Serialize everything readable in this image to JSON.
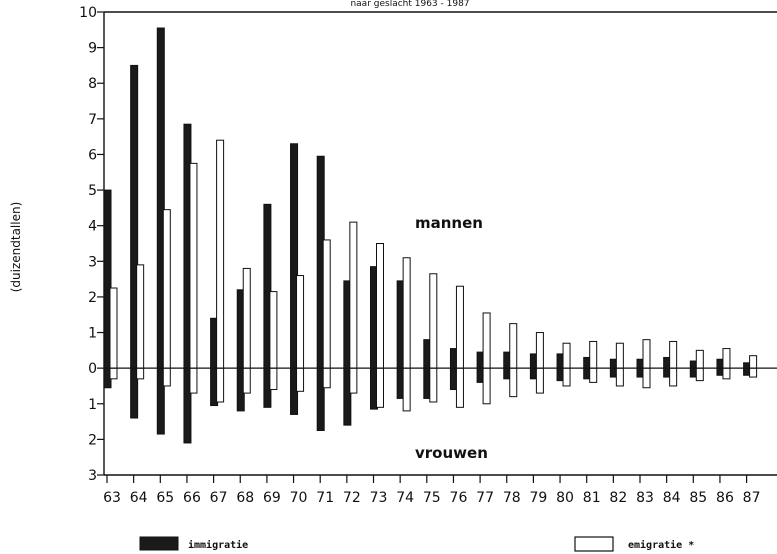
{
  "chart_data": {
    "type": "bar",
    "title": "naar geslacht 1963 - 1987",
    "ylabel": "(duizendtallen)",
    "categories": [
      "63",
      "64",
      "65",
      "66",
      "67",
      "68",
      "69",
      "70",
      "71",
      "72",
      "73",
      "74",
      "75",
      "76",
      "77",
      "78",
      "79",
      "80",
      "81",
      "82",
      "83",
      "84",
      "85",
      "86",
      "87"
    ],
    "ylim": [
      -3,
      10
    ],
    "y_ticks": [
      {
        "value": 10,
        "label": "10"
      },
      {
        "value": 9,
        "label": "9"
      },
      {
        "value": 8,
        "label": "8"
      },
      {
        "value": 7,
        "label": "7"
      },
      {
        "value": 6,
        "label": "6"
      },
      {
        "value": 5,
        "label": "5"
      },
      {
        "value": 4,
        "label": "4"
      },
      {
        "value": 3,
        "label": "3"
      },
      {
        "value": 2,
        "label": "2"
      },
      {
        "value": 1,
        "label": "1"
      },
      {
        "value": 0,
        "label": "0"
      },
      {
        "value": -1,
        "label": "1"
      },
      {
        "value": -2,
        "label": "2"
      },
      {
        "value": -3,
        "label": "3"
      }
    ],
    "annotations": {
      "upper": "mannen",
      "lower": "vrouwen"
    },
    "legend": {
      "placement": "bottom",
      "immigratie": "immigratie",
      "emigratie": "emigratie *"
    },
    "series": [
      {
        "name": "immigratie",
        "group": "mannen",
        "color": "#1a1a1a",
        "values": [
          5.0,
          8.5,
          9.55,
          6.85,
          1.4,
          2.2,
          4.6,
          6.3,
          5.95,
          2.45,
          2.85,
          2.45,
          0.8,
          0.55,
          0.45,
          0.45,
          0.4,
          0.4,
          0.3,
          0.25,
          0.25,
          0.3,
          0.2,
          0.25,
          0.15
        ]
      },
      {
        "name": "emigratie *",
        "group": "mannen",
        "color": "#ffffff",
        "values": [
          2.25,
          2.9,
          4.45,
          5.75,
          6.4,
          2.8,
          2.15,
          2.6,
          3.6,
          4.1,
          3.5,
          3.1,
          2.65,
          2.3,
          1.55,
          1.25,
          1.0,
          0.7,
          0.75,
          0.7,
          0.8,
          0.75,
          0.5,
          0.55,
          0.35
        ]
      },
      {
        "name": "immigratie",
        "group": "vrouwen",
        "color": "#1a1a1a",
        "values": [
          -0.55,
          -1.4,
          -1.85,
          -2.1,
          -1.05,
          -1.2,
          -1.1,
          -1.3,
          -1.75,
          -1.6,
          -1.15,
          -0.85,
          -0.85,
          -0.6,
          -0.4,
          -0.3,
          -0.3,
          -0.35,
          -0.3,
          -0.25,
          -0.25,
          -0.25,
          -0.25,
          -0.2,
          -0.2
        ]
      },
      {
        "name": "emigratie *",
        "group": "vrouwen",
        "color": "#ffffff",
        "values": [
          -0.3,
          -0.3,
          -0.5,
          -0.7,
          -0.95,
          -0.7,
          -0.6,
          -0.65,
          -0.55,
          -0.7,
          -1.1,
          -1.2,
          -0.95,
          -1.1,
          -1.0,
          -0.8,
          -0.7,
          -0.5,
          -0.4,
          -0.5,
          -0.55,
          -0.5,
          -0.35,
          -0.3,
          -0.25
        ]
      }
    ]
  }
}
